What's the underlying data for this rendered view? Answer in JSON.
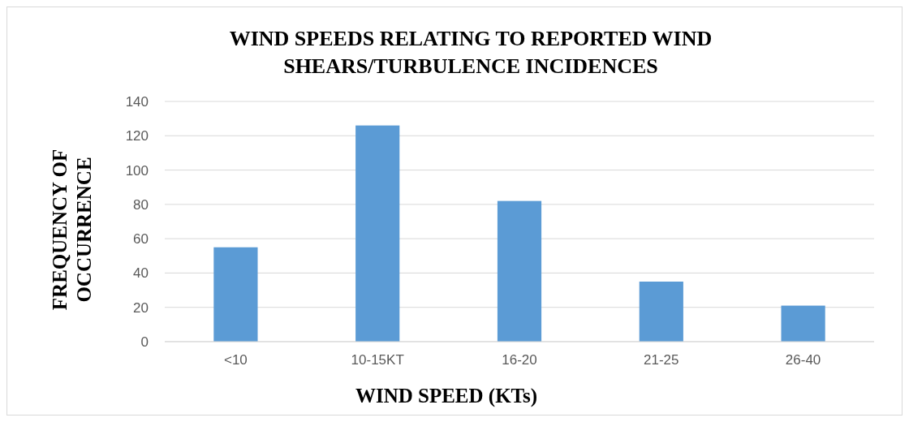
{
  "chart_data": {
    "type": "bar",
    "title": "WIND SPEEDS RELATING TO REPORTED WIND SHEARS/TURBULENCE INCIDENCES",
    "xlabel": "WIND SPEED (KTs)",
    "ylabel": "FREQUENCY OF OCCURRENCE",
    "categories": [
      "<10",
      "10-15KT",
      "16-20",
      "21-25",
      "26-40"
    ],
    "values": [
      55,
      126,
      82,
      35,
      21
    ],
    "color": "#5b9bd5",
    "ylim": [
      0,
      140
    ],
    "yticks": [
      0,
      20,
      40,
      60,
      80,
      100,
      120,
      140
    ],
    "grid": "y"
  }
}
